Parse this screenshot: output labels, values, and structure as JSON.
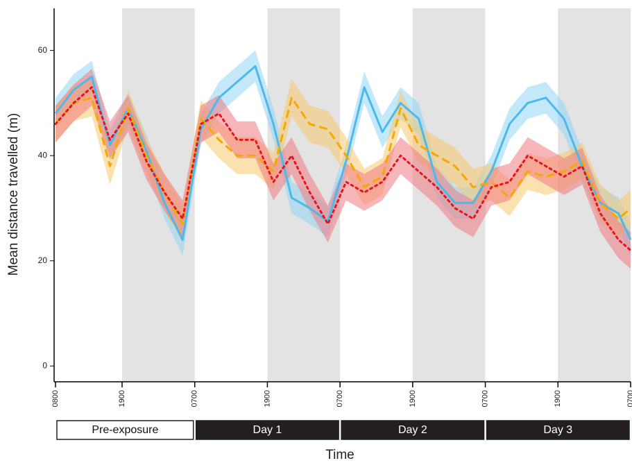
{
  "chart_data": {
    "type": "line",
    "y_label": "Mean distance travelled (m)",
    "x_label": "Time",
    "xlim": [
      0,
      95
    ],
    "ylim": [
      -3,
      68
    ],
    "yticks": [
      0,
      20,
      40,
      60
    ],
    "xticks": [
      {
        "value": 0,
        "label": "0800"
      },
      {
        "value": 11,
        "label": "1900"
      },
      {
        "value": 23,
        "label": "0700"
      },
      {
        "value": 35,
        "label": "1900"
      },
      {
        "value": 47,
        "label": "0700"
      },
      {
        "value": 59,
        "label": "1900"
      },
      {
        "value": 71,
        "label": "0700"
      },
      {
        "value": 83,
        "label": "1900"
      },
      {
        "value": 95,
        "label": "0700"
      }
    ],
    "shaded_regions": [
      [
        11,
        23
      ],
      [
        35,
        47
      ],
      [
        59,
        71
      ],
      [
        83,
        95
      ]
    ],
    "shade_color": "#e3e3e3",
    "periods": [
      {
        "label": "Pre-exposure",
        "start": 0,
        "end": 23,
        "style": "outline"
      },
      {
        "label": "Day 1",
        "start": 23,
        "end": 47,
        "style": "filled"
      },
      {
        "label": "Day 2",
        "start": 47,
        "end": 71,
        "style": "filled"
      },
      {
        "label": "Day 3",
        "start": 71,
        "end": 95,
        "style": "filled"
      }
    ],
    "x": [
      0,
      3,
      6,
      9,
      12,
      15,
      18,
      21,
      24,
      27,
      30,
      33,
      36,
      39,
      42,
      45,
      48,
      51,
      54,
      57,
      60,
      63,
      66,
      69,
      72,
      75,
      78,
      81,
      84,
      87,
      90,
      93,
      95
    ],
    "series": [
      {
        "color": "#4fb8ea",
        "band_color": "#8fd6f5",
        "dash": "solid",
        "error": 3,
        "values": [
          48,
          52.5,
          55,
          42,
          49,
          41,
          31,
          24,
          45,
          51,
          54,
          57,
          46,
          32,
          30,
          27.5,
          39,
          53,
          44.5,
          50,
          47,
          35,
          31,
          31,
          37,
          46,
          50,
          51,
          47,
          38,
          31,
          29,
          24
        ]
      },
      {
        "color": "#f5a800",
        "band_color": "#f7c870",
        "dash": "dashed",
        "error": 3.5,
        "values": [
          46,
          50,
          51,
          38,
          49,
          40,
          33,
          27,
          47,
          43,
          40,
          40,
          37,
          51,
          46,
          45,
          40,
          34,
          36,
          49,
          42,
          40,
          38,
          34,
          35,
          32,
          37,
          36,
          37,
          39,
          31,
          28,
          30
        ]
      },
      {
        "color": "#e8131b",
        "band_color": "#f07a80",
        "dash": "dotted",
        "error": 3.5,
        "values": [
          46,
          50,
          53,
          43,
          48,
          39,
          33,
          28,
          46,
          48,
          43,
          43,
          35,
          40,
          33,
          27,
          35,
          33,
          35,
          40,
          37,
          34,
          30,
          28,
          34,
          35,
          40,
          38,
          36,
          38,
          29,
          24,
          22
        ]
      }
    ]
  }
}
